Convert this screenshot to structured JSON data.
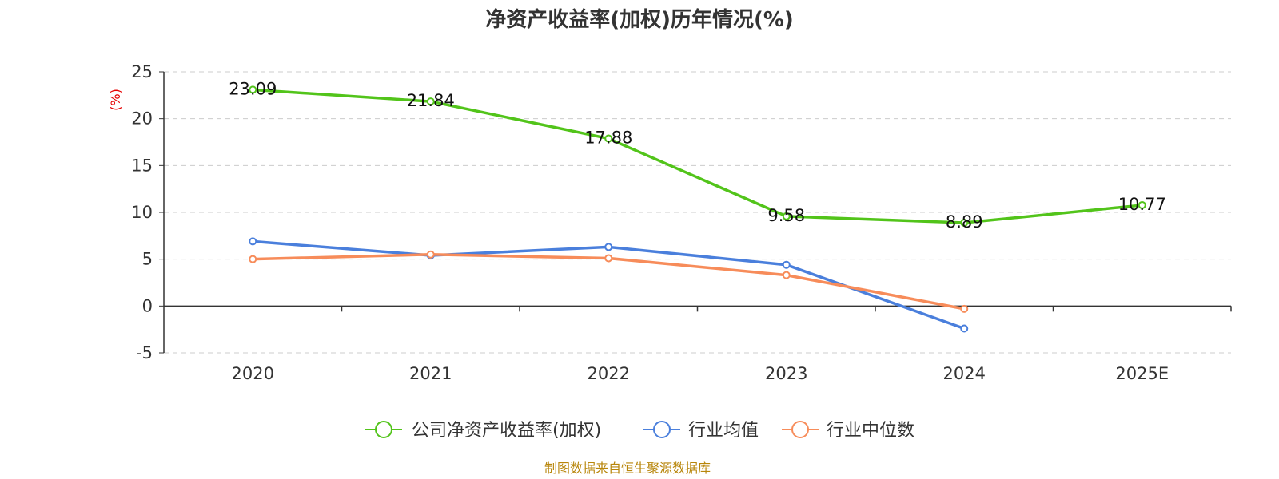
{
  "chart_data": {
    "type": "line",
    "title": "净资产收益率(加权)历年情况(%)",
    "ylabel": "(%)",
    "xlabel": "",
    "categories": [
      "2020",
      "2021",
      "2022",
      "2023",
      "2024",
      "2025E"
    ],
    "ylim": [
      -5,
      25
    ],
    "yticks": [
      25,
      20,
      15,
      10,
      5,
      0,
      -5
    ],
    "grid": true,
    "legend_position": "bottom",
    "series": [
      {
        "name": "公司净资产收益率(加权)",
        "color": "#52c41a",
        "values": [
          23.09,
          21.84,
          17.88,
          9.58,
          8.89,
          10.77
        ],
        "labels": [
          "23.09",
          "21.84",
          "17.88",
          "9.58",
          "8.89",
          "10.77"
        ]
      },
      {
        "name": "行业均值",
        "color": "#4a7fdc",
        "values": [
          6.9,
          5.4,
          6.3,
          4.4,
          -2.4,
          null
        ]
      },
      {
        "name": "行业中位数",
        "color": "#f78c5a",
        "values": [
          5.0,
          5.5,
          5.1,
          3.3,
          -0.3,
          null
        ]
      }
    ]
  },
  "footer": {
    "source": "制图数据来自恒生聚源数据库"
  }
}
